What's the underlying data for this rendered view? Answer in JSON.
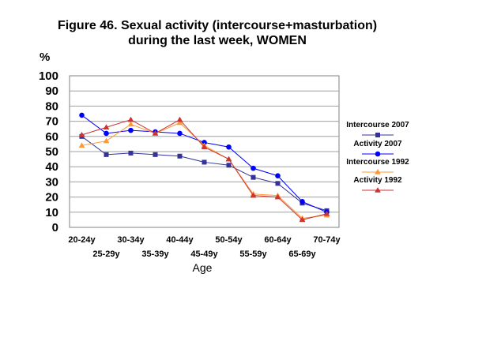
{
  "chart_data": {
    "type": "line",
    "title_line1": "Figure 46. Sexual activity (intercourse+masturbation)",
    "title_line2": "during the last week, WOMEN",
    "ylabel": "%",
    "xlabel": "Age",
    "ylim": [
      0,
      100
    ],
    "yticks": [
      "0",
      "10",
      "20",
      "30",
      "40",
      "50",
      "60",
      "70",
      "80",
      "90",
      "100"
    ],
    "categories": [
      "20-24y",
      "25-29y",
      "30-34y",
      "35-39y",
      "40-44y",
      "45-49y",
      "50-54y",
      "55-59y",
      "60-64y",
      "65-69y",
      "70-74y"
    ],
    "grid": true,
    "legend_position": "right",
    "series": [
      {
        "name": "Intercourse 2007",
        "color": "#333399",
        "marker": "square",
        "values": [
          60,
          48,
          49,
          48,
          47,
          43,
          41,
          33,
          29,
          16,
          11
        ]
      },
      {
        "name": "Activity 2007",
        "color": "#0000ff",
        "marker": "circle",
        "values": [
          74,
          62,
          64,
          63,
          62,
          56,
          53,
          39,
          34,
          17,
          10
        ]
      },
      {
        "name": "Intercourse 1992",
        "color": "#ff9933",
        "marker": "triangle",
        "values": [
          54,
          57,
          68,
          62,
          69,
          54,
          45,
          22,
          21,
          6,
          8
        ]
      },
      {
        "name": "Activity 1992",
        "color": "#cc3333",
        "marker": "triangle",
        "values": [
          61,
          66,
          71,
          62,
          71,
          53,
          45,
          21,
          20,
          5,
          9
        ]
      }
    ]
  }
}
